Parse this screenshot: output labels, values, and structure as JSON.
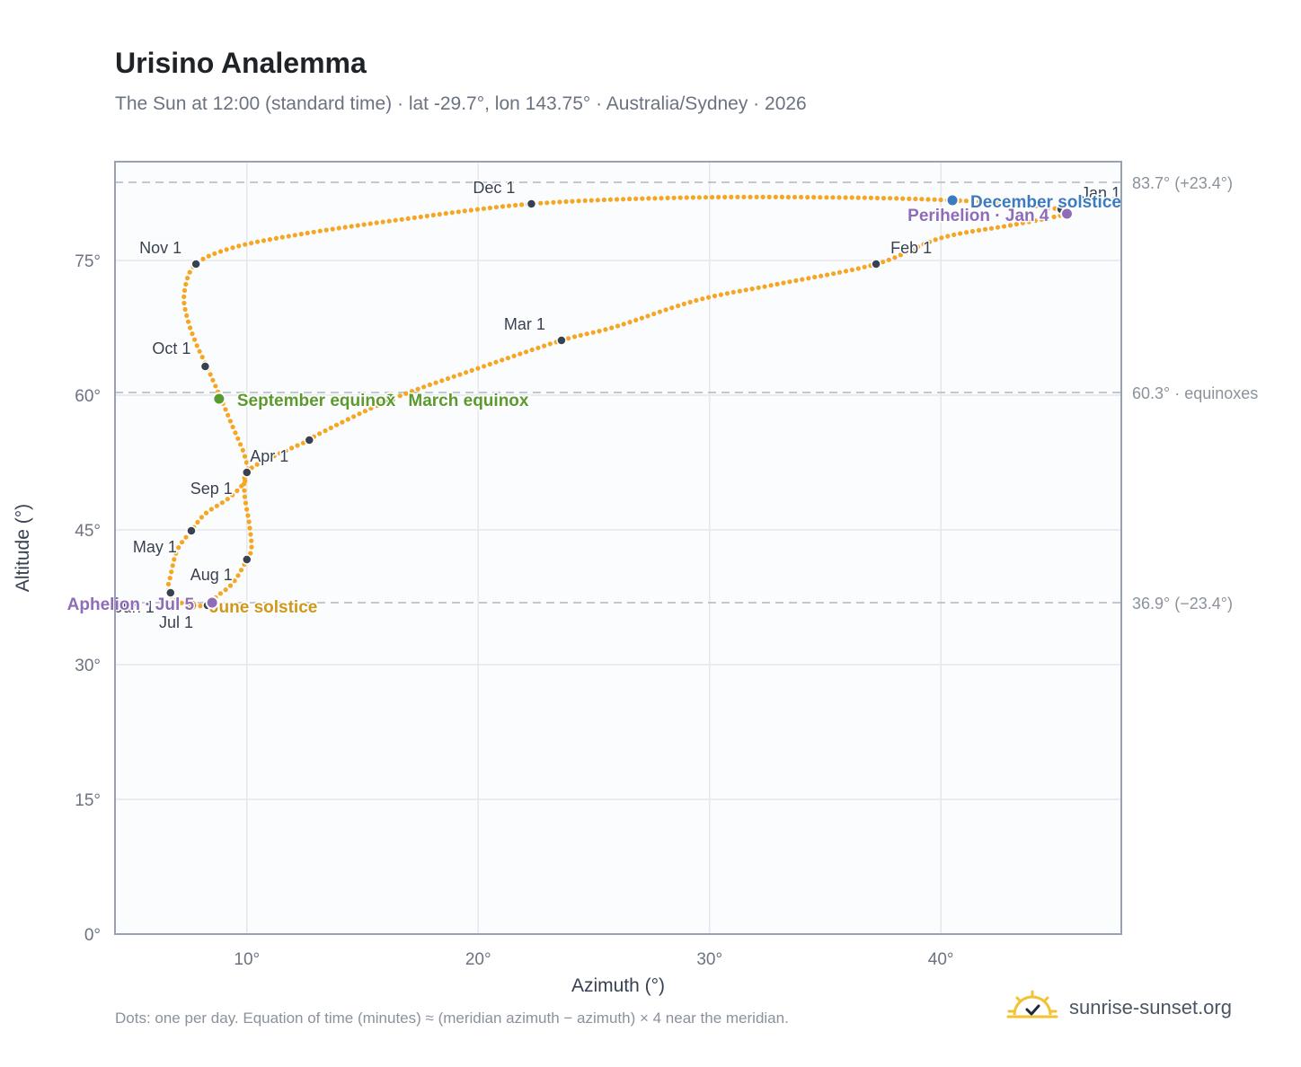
{
  "title": "Urisino Analemma",
  "subtitle": "The Sun at 12:00 (standard time) · lat -29.7°, lon 143.75° · Australia/Sydney · 2026",
  "footnote": "Dots: one per day. Equation of time (minutes) ≈ (meridian azimuth − azimuth) × 4 near the meridian.",
  "brand": {
    "name": "sunrise-sunset.org",
    "icon": "sun-logo-icon"
  },
  "colors": {
    "curve": "#f5a623",
    "month_marker": "#374151",
    "equinox": "#5a9a2e",
    "june_solstice": "#d0981a",
    "december_solstice": "#3b7bbf",
    "apsis": "#8e6cb8",
    "grid": "#e5e7eb",
    "reference_line": "#b8c0cc",
    "plot_bg": "#fafcfe",
    "axis_border": "#97a3b3"
  },
  "chart_data": {
    "type": "scatter",
    "xlabel": "Azimuth (°)",
    "ylabel": "Altitude (°)",
    "xlim": [
      4.3,
      47.8
    ],
    "ylim": [
      0,
      86
    ],
    "xticks": [
      10,
      20,
      30,
      40
    ],
    "yticks": [
      0,
      15,
      30,
      45,
      60,
      75
    ],
    "tick_suffix": "°",
    "grid": true,
    "reference_lines": [
      {
        "altitude": 83.7,
        "label": "83.7° (+23.4°)"
      },
      {
        "altitude": 60.3,
        "label": "60.3° · equinoxes"
      },
      {
        "altitude": 36.9,
        "label": "36.9° (−23.4°)"
      }
    ],
    "series": [
      {
        "points": [
          [
            45.2,
            80.7
          ],
          [
            45.45,
            80.2
          ],
          [
            43.2,
            79.0
          ],
          [
            40.0,
            77.5
          ],
          [
            37.2,
            74.6
          ],
          [
            33.0,
            72.4
          ],
          [
            29.5,
            70.6
          ],
          [
            25.9,
            67.6
          ],
          [
            23.6,
            66.1
          ],
          [
            20.0,
            63.0
          ],
          [
            16.3,
            59.6
          ],
          [
            13.2,
            55.8
          ],
          [
            12.7,
            55.0
          ],
          [
            11.0,
            53.0
          ],
          [
            10.0,
            51.4
          ],
          [
            9.9,
            49.0
          ],
          [
            10.1,
            45.7
          ],
          [
            10.2,
            43.0
          ],
          [
            10.0,
            41.7
          ],
          [
            9.4,
            39.1
          ],
          [
            8.7,
            37.6
          ],
          [
            8.5,
            36.9
          ],
          [
            8.3,
            36.6
          ],
          [
            7.6,
            36.6
          ],
          [
            6.9,
            37.2
          ],
          [
            6.6,
            38.3
          ],
          [
            6.7,
            39.9
          ],
          [
            7.0,
            42.8
          ],
          [
            7.6,
            44.9
          ],
          [
            8.2,
            46.8
          ],
          [
            9.3,
            48.7
          ],
          [
            10.0,
            50.9
          ],
          [
            9.9,
            53.3
          ],
          [
            9.4,
            56.4
          ],
          [
            8.9,
            59.5
          ],
          [
            8.3,
            63.0
          ],
          [
            7.8,
            65.8
          ],
          [
            7.4,
            68.8
          ],
          [
            7.3,
            71.5
          ],
          [
            7.8,
            74.6
          ],
          [
            9.5,
            76.5
          ],
          [
            12.5,
            78.0
          ],
          [
            16.5,
            79.5
          ],
          [
            22.3,
            81.3
          ],
          [
            29.0,
            82.0
          ],
          [
            36.0,
            82.0
          ],
          [
            40.5,
            81.7
          ],
          [
            43.5,
            81.2
          ],
          [
            45.2,
            80.7
          ]
        ]
      }
    ],
    "month_markers": [
      {
        "label": "Jan 1",
        "x": 45.2,
        "y": 80.7
      },
      {
        "label": "Feb 1",
        "x": 37.2,
        "y": 74.6
      },
      {
        "label": "Mar 1",
        "x": 23.6,
        "y": 66.1
      },
      {
        "label": "Apr 1",
        "x": 12.7,
        "y": 55.0
      },
      {
        "label": "May 1",
        "x": 7.6,
        "y": 44.9
      },
      {
        "label": "Jun 1",
        "x": 6.7,
        "y": 38.0
      },
      {
        "label": "Jul 1",
        "x": 8.3,
        "y": 36.6
      },
      {
        "label": "Aug 1",
        "x": 10.0,
        "y": 41.7
      },
      {
        "label": "Sep 1",
        "x": 10.0,
        "y": 51.4
      },
      {
        "label": "Oct 1",
        "x": 8.2,
        "y": 63.2
      },
      {
        "label": "Nov 1",
        "x": 7.8,
        "y": 74.6
      },
      {
        "label": "Dec 1",
        "x": 22.3,
        "y": 81.3
      }
    ],
    "events": [
      {
        "label": "March equinox",
        "x": 16.2,
        "y": 59.6,
        "kind": "equinox"
      },
      {
        "label": "September equinox",
        "x": 8.8,
        "y": 59.6,
        "kind": "equinox"
      },
      {
        "label": "June solstice",
        "x": 7.6,
        "y": 36.6,
        "kind": "june_solstice"
      },
      {
        "label": "December solstice",
        "x": 40.5,
        "y": 81.7,
        "kind": "december_solstice"
      },
      {
        "label": "Perihelion · Jan 4",
        "x": 45.45,
        "y": 80.2,
        "kind": "apsis"
      },
      {
        "label": "Aphelion · Jul 5",
        "x": 8.5,
        "y": 36.9,
        "kind": "apsis"
      }
    ]
  }
}
